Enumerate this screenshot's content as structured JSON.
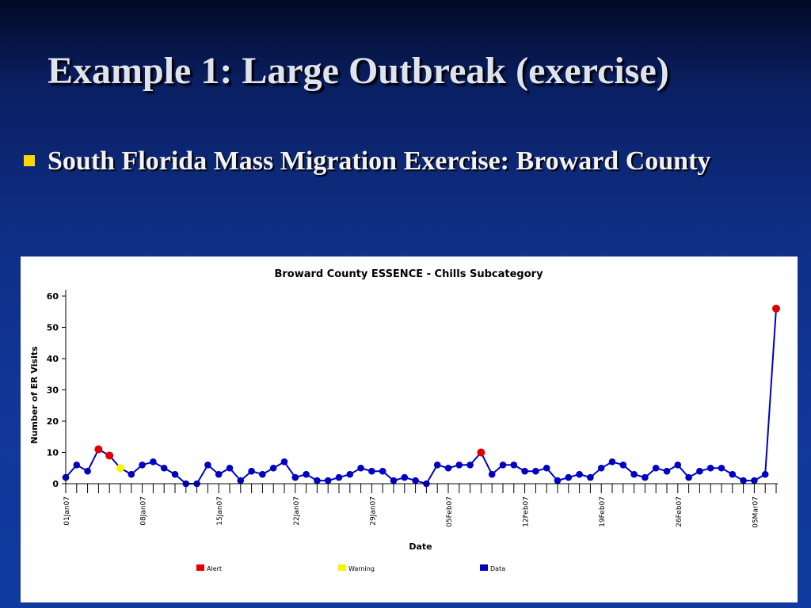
{
  "slide": {
    "title": "Example 1: Large Outbreak (exercise)",
    "bullet": "South Florida Mass Migration Exercise: Broward County"
  },
  "colors": {
    "alert": "#e00000",
    "warning": "#f5f500",
    "data": "#0000c0",
    "bullet": "#ffd700"
  },
  "chart_data": {
    "type": "line",
    "title": "Broward County ESSENCE - Chills Subcategory",
    "xlabel": "Date",
    "ylabel": "Number of ER Visits",
    "ylim": [
      0,
      60
    ],
    "yticks": [
      0,
      10,
      20,
      30,
      40,
      50,
      60
    ],
    "grid": false,
    "legend_position": "bottom",
    "x_tick_labels": [
      "01Jan07",
      "08Jan07",
      "15Jan07",
      "22Jan07",
      "29Jan07",
      "05Feb07",
      "12Feb07",
      "19Feb07",
      "26Feb07",
      "05Mar07"
    ],
    "start_date": "01Jan07",
    "values": [
      2,
      6,
      4,
      11,
      9,
      5,
      3,
      6,
      7,
      5,
      3,
      0,
      0,
      6,
      3,
      5,
      1,
      4,
      3,
      5,
      7,
      2,
      3,
      1,
      1,
      2,
      3,
      5,
      4,
      4,
      1,
      2,
      1,
      0,
      6,
      5,
      6,
      6,
      10,
      3,
      6,
      6,
      4,
      4,
      5,
      1,
      2,
      3,
      2,
      5,
      7,
      6,
      3,
      2,
      5,
      4,
      6,
      2,
      4,
      5,
      5,
      3,
      1,
      1,
      3,
      56
    ],
    "point_status": [
      "data",
      "data",
      "data",
      "alert",
      "alert",
      "warning",
      "data",
      "data",
      "data",
      "data",
      "data",
      "data",
      "data",
      "data",
      "data",
      "data",
      "data",
      "data",
      "data",
      "data",
      "data",
      "data",
      "data",
      "data",
      "data",
      "data",
      "data",
      "data",
      "data",
      "data",
      "data",
      "data",
      "data",
      "data",
      "data",
      "data",
      "data",
      "data",
      "alert",
      "data",
      "data",
      "data",
      "data",
      "data",
      "data",
      "data",
      "data",
      "data",
      "data",
      "data",
      "data",
      "data",
      "data",
      "data",
      "data",
      "data",
      "data",
      "data",
      "data",
      "data",
      "data",
      "data",
      "data",
      "data",
      "data",
      "alert"
    ],
    "legend": [
      {
        "label": "Alert",
        "status": "alert"
      },
      {
        "label": "Warning",
        "status": "warning"
      },
      {
        "label": "Data",
        "status": "data"
      }
    ]
  }
}
